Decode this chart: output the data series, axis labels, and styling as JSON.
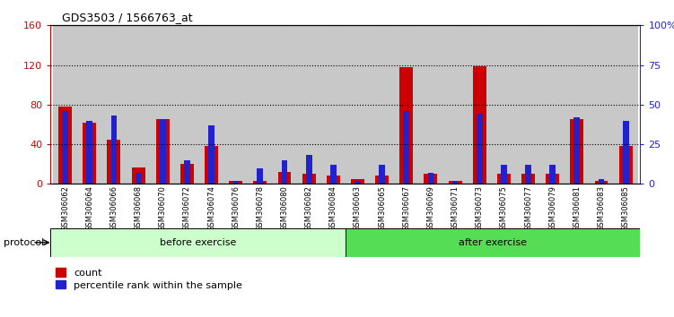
{
  "title": "GDS3503 / 1566763_at",
  "categories": [
    "GSM306062",
    "GSM306064",
    "GSM306066",
    "GSM306068",
    "GSM306070",
    "GSM306072",
    "GSM306074",
    "GSM306076",
    "GSM306078",
    "GSM306080",
    "GSM306082",
    "GSM306084",
    "GSM306063",
    "GSM306065",
    "GSM306067",
    "GSM306069",
    "GSM306071",
    "GSM306073",
    "GSM306075",
    "GSM306077",
    "GSM306079",
    "GSM306081",
    "GSM306083",
    "GSM306085"
  ],
  "count_values": [
    78,
    62,
    45,
    17,
    65,
    20,
    38,
    3,
    3,
    12,
    10,
    8,
    5,
    8,
    118,
    10,
    3,
    119,
    10,
    10,
    10,
    65,
    3,
    38
  ],
  "percentile_values": [
    46,
    40,
    43,
    7,
    41,
    15,
    37,
    2,
    10,
    15,
    18,
    12,
    2,
    12,
    46,
    7,
    2,
    44,
    12,
    12,
    12,
    42,
    3,
    40
  ],
  "before_exercise_count": 12,
  "after_exercise_count": 12,
  "before_label": "before exercise",
  "after_label": "after exercise",
  "protocol_label": "protocol",
  "bar_color_count": "#cc0000",
  "bar_color_pct": "#2222cc",
  "left_yaxis_color": "#cc0000",
  "right_yaxis_color": "#2222cc",
  "ylim_left": [
    0,
    160
  ],
  "ylim_right": [
    0,
    100
  ],
  "yticks_left": [
    0,
    40,
    80,
    120,
    160
  ],
  "yticks_right": [
    0,
    25,
    50,
    75,
    100
  ],
  "ytick_labels_right": [
    "0",
    "25",
    "50",
    "75",
    "100%"
  ],
  "before_bg": "#ccffcc",
  "after_bg": "#55dd55",
  "legend_count": "count",
  "legend_pct": "percentile rank within the sample"
}
